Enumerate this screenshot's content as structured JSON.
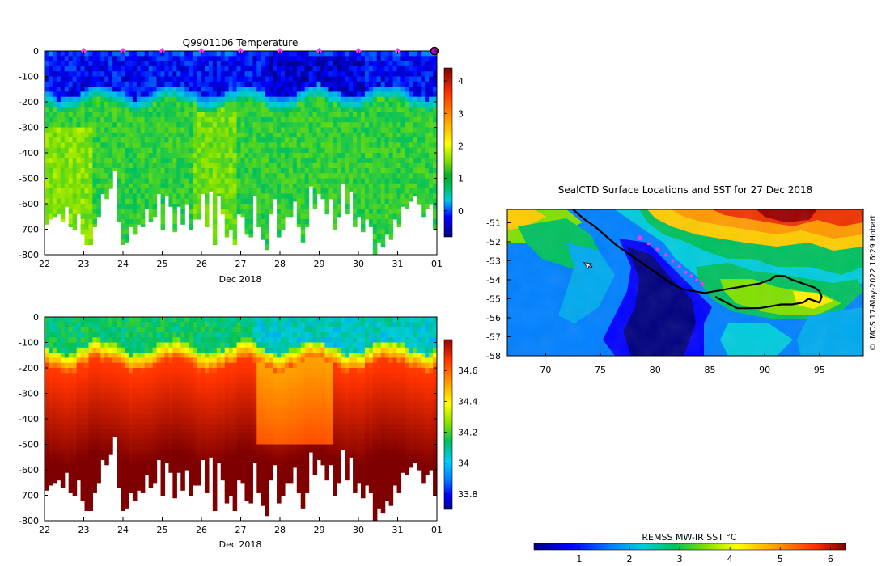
{
  "chart_data": [
    {
      "type": "heatmap",
      "title": "Q9901106  Temperature",
      "xlabel": "Dec 2018",
      "x_ticks": [
        "22",
        "23",
        "24",
        "25",
        "26",
        "27",
        "28",
        "29",
        "30",
        "31",
        "01"
      ],
      "y_ticks": [
        "0",
        "-100",
        "-200",
        "-300",
        "-400",
        "-500",
        "-600",
        "-700",
        "-800"
      ],
      "ylim": [
        -800,
        0
      ],
      "colorbar_ticks": [
        "4",
        "3",
        "2",
        "1",
        "0"
      ],
      "colorbar_range": [
        -0.8,
        4.4
      ],
      "profile_markers_days": [
        23,
        24,
        25,
        26,
        27,
        28,
        29,
        30,
        31
      ],
      "current_marker_day": 32,
      "profile_depths_m": [
        680,
        660,
        650,
        640,
        670,
        610,
        690,
        700,
        640,
        720,
        760,
        760,
        690,
        650,
        560,
        580,
        540,
        470,
        670,
        760,
        750,
        690,
        720,
        680,
        690,
        620,
        670,
        650,
        560,
        700,
        570,
        610,
        710,
        610,
        680,
        600,
        700,
        660,
        660,
        560,
        690,
        550,
        760,
        570,
        640,
        730,
        700,
        760,
        640,
        650,
        720,
        730,
        570,
        690,
        740,
        780,
        640,
        580,
        730,
        700,
        650,
        650,
        590,
        690,
        750,
        690,
        530,
        620,
        560,
        580,
        640,
        580,
        700,
        650,
        520,
        640,
        550,
        690,
        650,
        710,
        660,
        690,
        800,
        750,
        770,
        720,
        740,
        660,
        690,
        610,
        620,
        590,
        570,
        600,
        650,
        620,
        600,
        700
      ],
      "surface_layer": "-1 to 1 C above ~200 m; 1.5-2.5 C below"
    },
    {
      "type": "heatmap",
      "title": "",
      "xlabel": "Dec 2018",
      "x_ticks": [
        "22",
        "23",
        "24",
        "25",
        "26",
        "27",
        "28",
        "29",
        "30",
        "31",
        "01"
      ],
      "y_ticks": [
        "0",
        "-100",
        "-200",
        "-300",
        "-400",
        "-500",
        "-600",
        "-700",
        "-800"
      ],
      "ylim": [
        -800,
        0
      ],
      "colorbar_ticks": [
        "34.6",
        "34.4",
        "34.2",
        "34",
        "33.8"
      ],
      "colorbar_range": [
        33.7,
        34.8
      ],
      "surface_layer": "~34.0-34.2 above ~150 m; ~34.7 below"
    },
    {
      "type": "heatmap",
      "title": "SealCTD Surface Locations and SST for 27 Dec 2018",
      "xlabel": "",
      "ylabel": "",
      "x_ticks": [
        "70",
        "75",
        "80",
        "85",
        "90",
        "95"
      ],
      "xlim": [
        66.5,
        99
      ],
      "y_ticks": [
        "-51",
        "-52",
        "-53",
        "-54",
        "-55",
        "-56",
        "-57",
        "-58"
      ],
      "ylim": [
        -58,
        -50.3
      ],
      "colorbar_label": "REMSS MW-IR SST °C",
      "colorbar_ticks": [
        "1",
        "2",
        "3",
        "4",
        "5",
        "6"
      ],
      "colorbar_range": [
        0.1,
        6.3
      ],
      "track_lon_lat": [
        [
          72.5,
          -50.3
        ],
        [
          73.5,
          -50.8
        ],
        [
          74.5,
          -51.2
        ],
        [
          75.5,
          -51.7
        ],
        [
          76.5,
          -52.2
        ],
        [
          77.5,
          -52.6
        ],
        [
          78.5,
          -53.0
        ],
        [
          79.5,
          -53.4
        ],
        [
          80.5,
          -53.8
        ],
        [
          81.5,
          -54.2
        ],
        [
          82.5,
          -54.5
        ],
        [
          83.5,
          -54.6
        ],
        [
          84.5,
          -54.7
        ],
        [
          85.5,
          -54.6
        ],
        [
          86.5,
          -54.5
        ],
        [
          87.5,
          -54.4
        ],
        [
          88.5,
          -54.3
        ],
        [
          89.5,
          -54.2
        ],
        [
          90.5,
          -54.0
        ],
        [
          91.0,
          -53.8
        ],
        [
          91.8,
          -53.8
        ],
        [
          92.5,
          -54.0
        ],
        [
          93.5,
          -54.2
        ],
        [
          94.5,
          -54.4
        ],
        [
          95.0,
          -54.6
        ],
        [
          95.2,
          -54.9
        ],
        [
          95.0,
          -55.2
        ],
        [
          94.5,
          -55.1
        ],
        [
          94.0,
          -55.0
        ],
        [
          93.5,
          -55.2
        ],
        [
          92.5,
          -55.3
        ],
        [
          91.5,
          -55.3
        ],
        [
          90.5,
          -55.4
        ],
        [
          89.5,
          -55.5
        ],
        [
          88.5,
          -55.5
        ],
        [
          87.5,
          -55.5
        ],
        [
          86.5,
          -55.2
        ],
        [
          85.5,
          -54.9
        ]
      ],
      "sealctd_locations_lon_lat": [
        [
          78.6,
          -51.8
        ],
        [
          79.4,
          -52.1
        ],
        [
          80.2,
          -52.4
        ],
        [
          81.0,
          -52.7
        ],
        [
          81.6,
          -53.0
        ],
        [
          82.2,
          -53.3
        ],
        [
          82.8,
          -53.6
        ],
        [
          83.3,
          -53.8
        ],
        [
          83.8,
          -54.0
        ],
        [
          84.3,
          -54.2
        ]
      ],
      "cursor_lon_lat": [
        73.5,
        -53.1
      ]
    }
  ],
  "sidebar_label": "© IMOS 17-May-2022 16:29 Hobart"
}
